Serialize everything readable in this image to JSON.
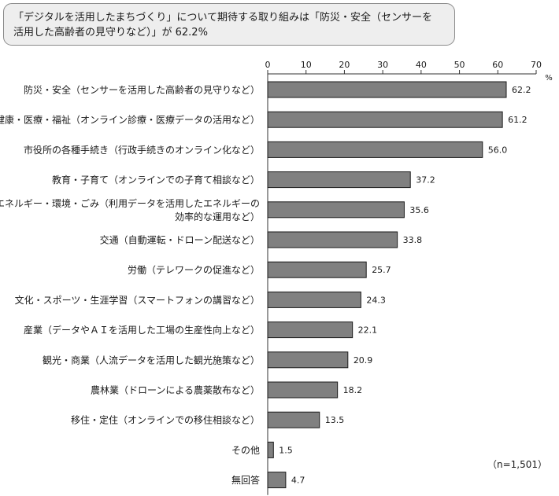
{
  "title": {
    "line1": "「デジタルを活用したまちづくり」について期待する取り組みは「防災・安全（センサーを",
    "line2": "活用した高齢者の見守りなど）」が 62.2%"
  },
  "chart_data": {
    "type": "bar",
    "orientation": "horizontal",
    "categories": [
      [
        "防災・安全（センサーを活用した高齢者の見守りなど）"
      ],
      [
        "健康・医療・福祉（オンライン診療・医療データの活用など）"
      ],
      [
        "市役所の各種手続き（行政手続きのオンライン化など）"
      ],
      [
        "教育・子育て（オンラインでの子育て相談など）"
      ],
      [
        "エネルギー・環境・ごみ（利用データを活用したエネルギーの",
        "効率的な運用など）"
      ],
      [
        "交通（自動運転・ドローン配送など）"
      ],
      [
        "労働（テレワークの促進など）"
      ],
      [
        "文化・スポーツ・生涯学習（スマートフォンの講習など）"
      ],
      [
        "産業（データやＡＩを活用した工場の生産性向上など）"
      ],
      [
        "観光・商業（人流データを活用した観光施策など）"
      ],
      [
        "農林業（ドローンによる農薬散布など）"
      ],
      [
        "移住・定住（オンラインでの移住相談など）"
      ],
      [
        "その他"
      ],
      [
        "無回答"
      ]
    ],
    "values": [
      62.2,
      61.2,
      56.0,
      37.2,
      35.6,
      33.8,
      25.7,
      24.3,
      22.1,
      20.9,
      18.2,
      13.5,
      1.5,
      4.7
    ],
    "value_labels": [
      "62.2",
      "61.2",
      "56.0",
      "37.2",
      "35.6",
      "33.8",
      "25.7",
      "24.3",
      "22.1",
      "20.9",
      "18.2",
      "13.5",
      "1.5",
      "4.7"
    ],
    "xlim": [
      0,
      70
    ],
    "xticks": [
      0,
      10,
      20,
      30,
      40,
      50,
      60,
      70
    ],
    "unit": "%",
    "grid": false,
    "axis_position": "top",
    "bar_color": "#808080",
    "bar_border_color": "#1a1a1a",
    "note": "（n=1,501）"
  }
}
